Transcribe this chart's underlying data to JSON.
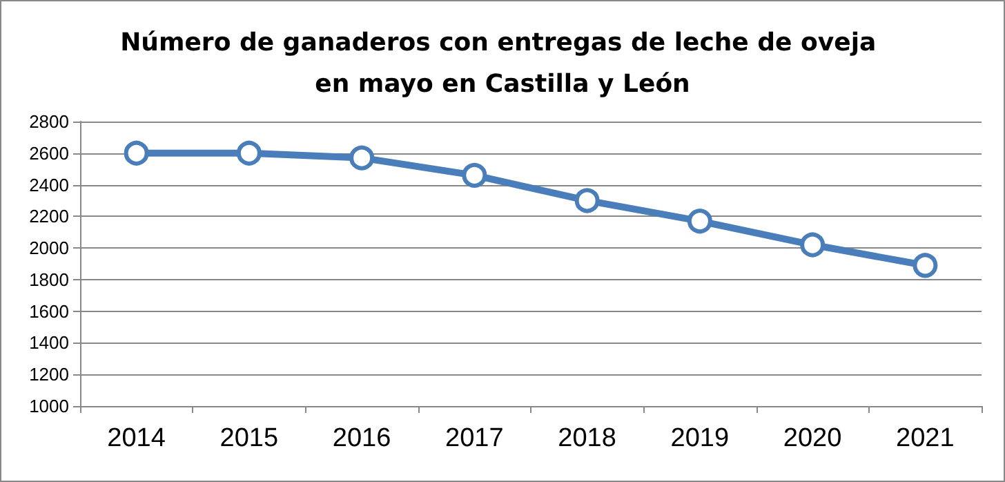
{
  "chart_data": {
    "type": "line",
    "title": "Número de ganaderos con entregas de leche de oveja en mayo en Castilla y León",
    "categories": [
      "2014",
      "2015",
      "2016",
      "2017",
      "2018",
      "2019",
      "2020",
      "2021"
    ],
    "series": [
      {
        "color": "#4a7ebb",
        "values": [
          2600,
          2600,
          2570,
          2460,
          2300,
          2170,
          2020,
          1890
        ]
      }
    ],
    "ylim": [
      1000,
      2800
    ],
    "yticks": [
      1000,
      1200,
      1400,
      1600,
      1800,
      2000,
      2200,
      2400,
      2600,
      2800
    ],
    "grid": "y",
    "marker": "circle",
    "line_style": "solid"
  }
}
